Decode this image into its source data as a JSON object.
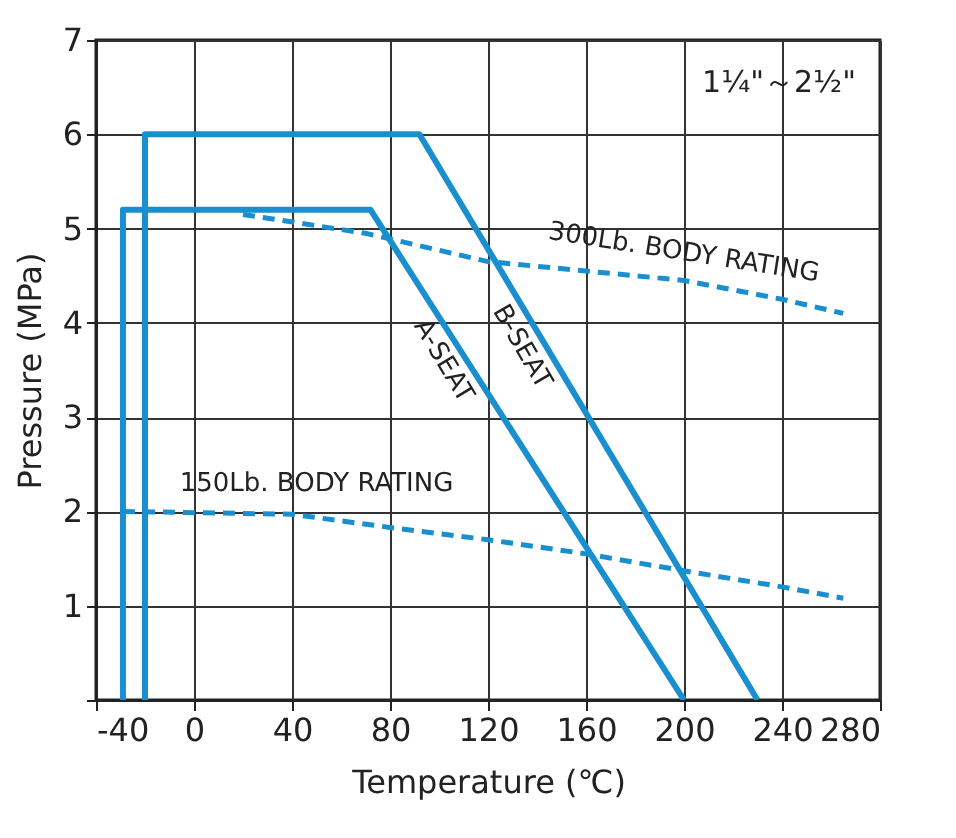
{
  "chart_data": {
    "type": "line",
    "xlabel": "Temperature (℃)",
    "ylabel": "Pressure (MPa)",
    "xlim": [
      -40,
      280
    ],
    "xticks": [
      -40,
      0,
      40,
      80,
      120,
      160,
      200,
      240,
      280
    ],
    "ylim": [
      0,
      7
    ],
    "yticks": [
      {
        "value": 0,
        "label": null
      },
      1,
      2,
      3,
      4,
      5,
      6,
      7
    ],
    "grid": true,
    "marker": "none",
    "annotations": [
      "1¼\"～2½\""
    ],
    "series": [
      {
        "name": "A-SEAT",
        "color": "#1a8fd0",
        "line_style": "solid",
        "x": [
          -29,
          -29,
          72,
          200
        ],
        "values": [
          0,
          5.2,
          5.2,
          0
        ]
      },
      {
        "name": "B-SEAT",
        "color": "#1a8fd0",
        "line_style": "solid",
        "x": [
          -20,
          -20,
          92,
          230
        ],
        "values": [
          0,
          6,
          6,
          0
        ]
      },
      {
        "name": "300Lb. BODY RATING",
        "color": "#1a8fd0",
        "line_style": "dashed",
        "x": [
          20,
          70,
          120,
          160,
          200,
          240,
          265
        ],
        "values": [
          5.15,
          4.95,
          4.65,
          4.55,
          4.45,
          4.25,
          4.1
        ]
      },
      {
        "name": "150Lb. BODY RATING",
        "color": "#1a8fd0",
        "line_style": "dashed",
        "x": [
          -29,
          40,
          80,
          120,
          160,
          200,
          240,
          265
        ],
        "values": [
          2.0,
          1.97,
          1.83,
          1.7,
          1.55,
          1.37,
          1.2,
          1.08
        ]
      }
    ]
  }
}
